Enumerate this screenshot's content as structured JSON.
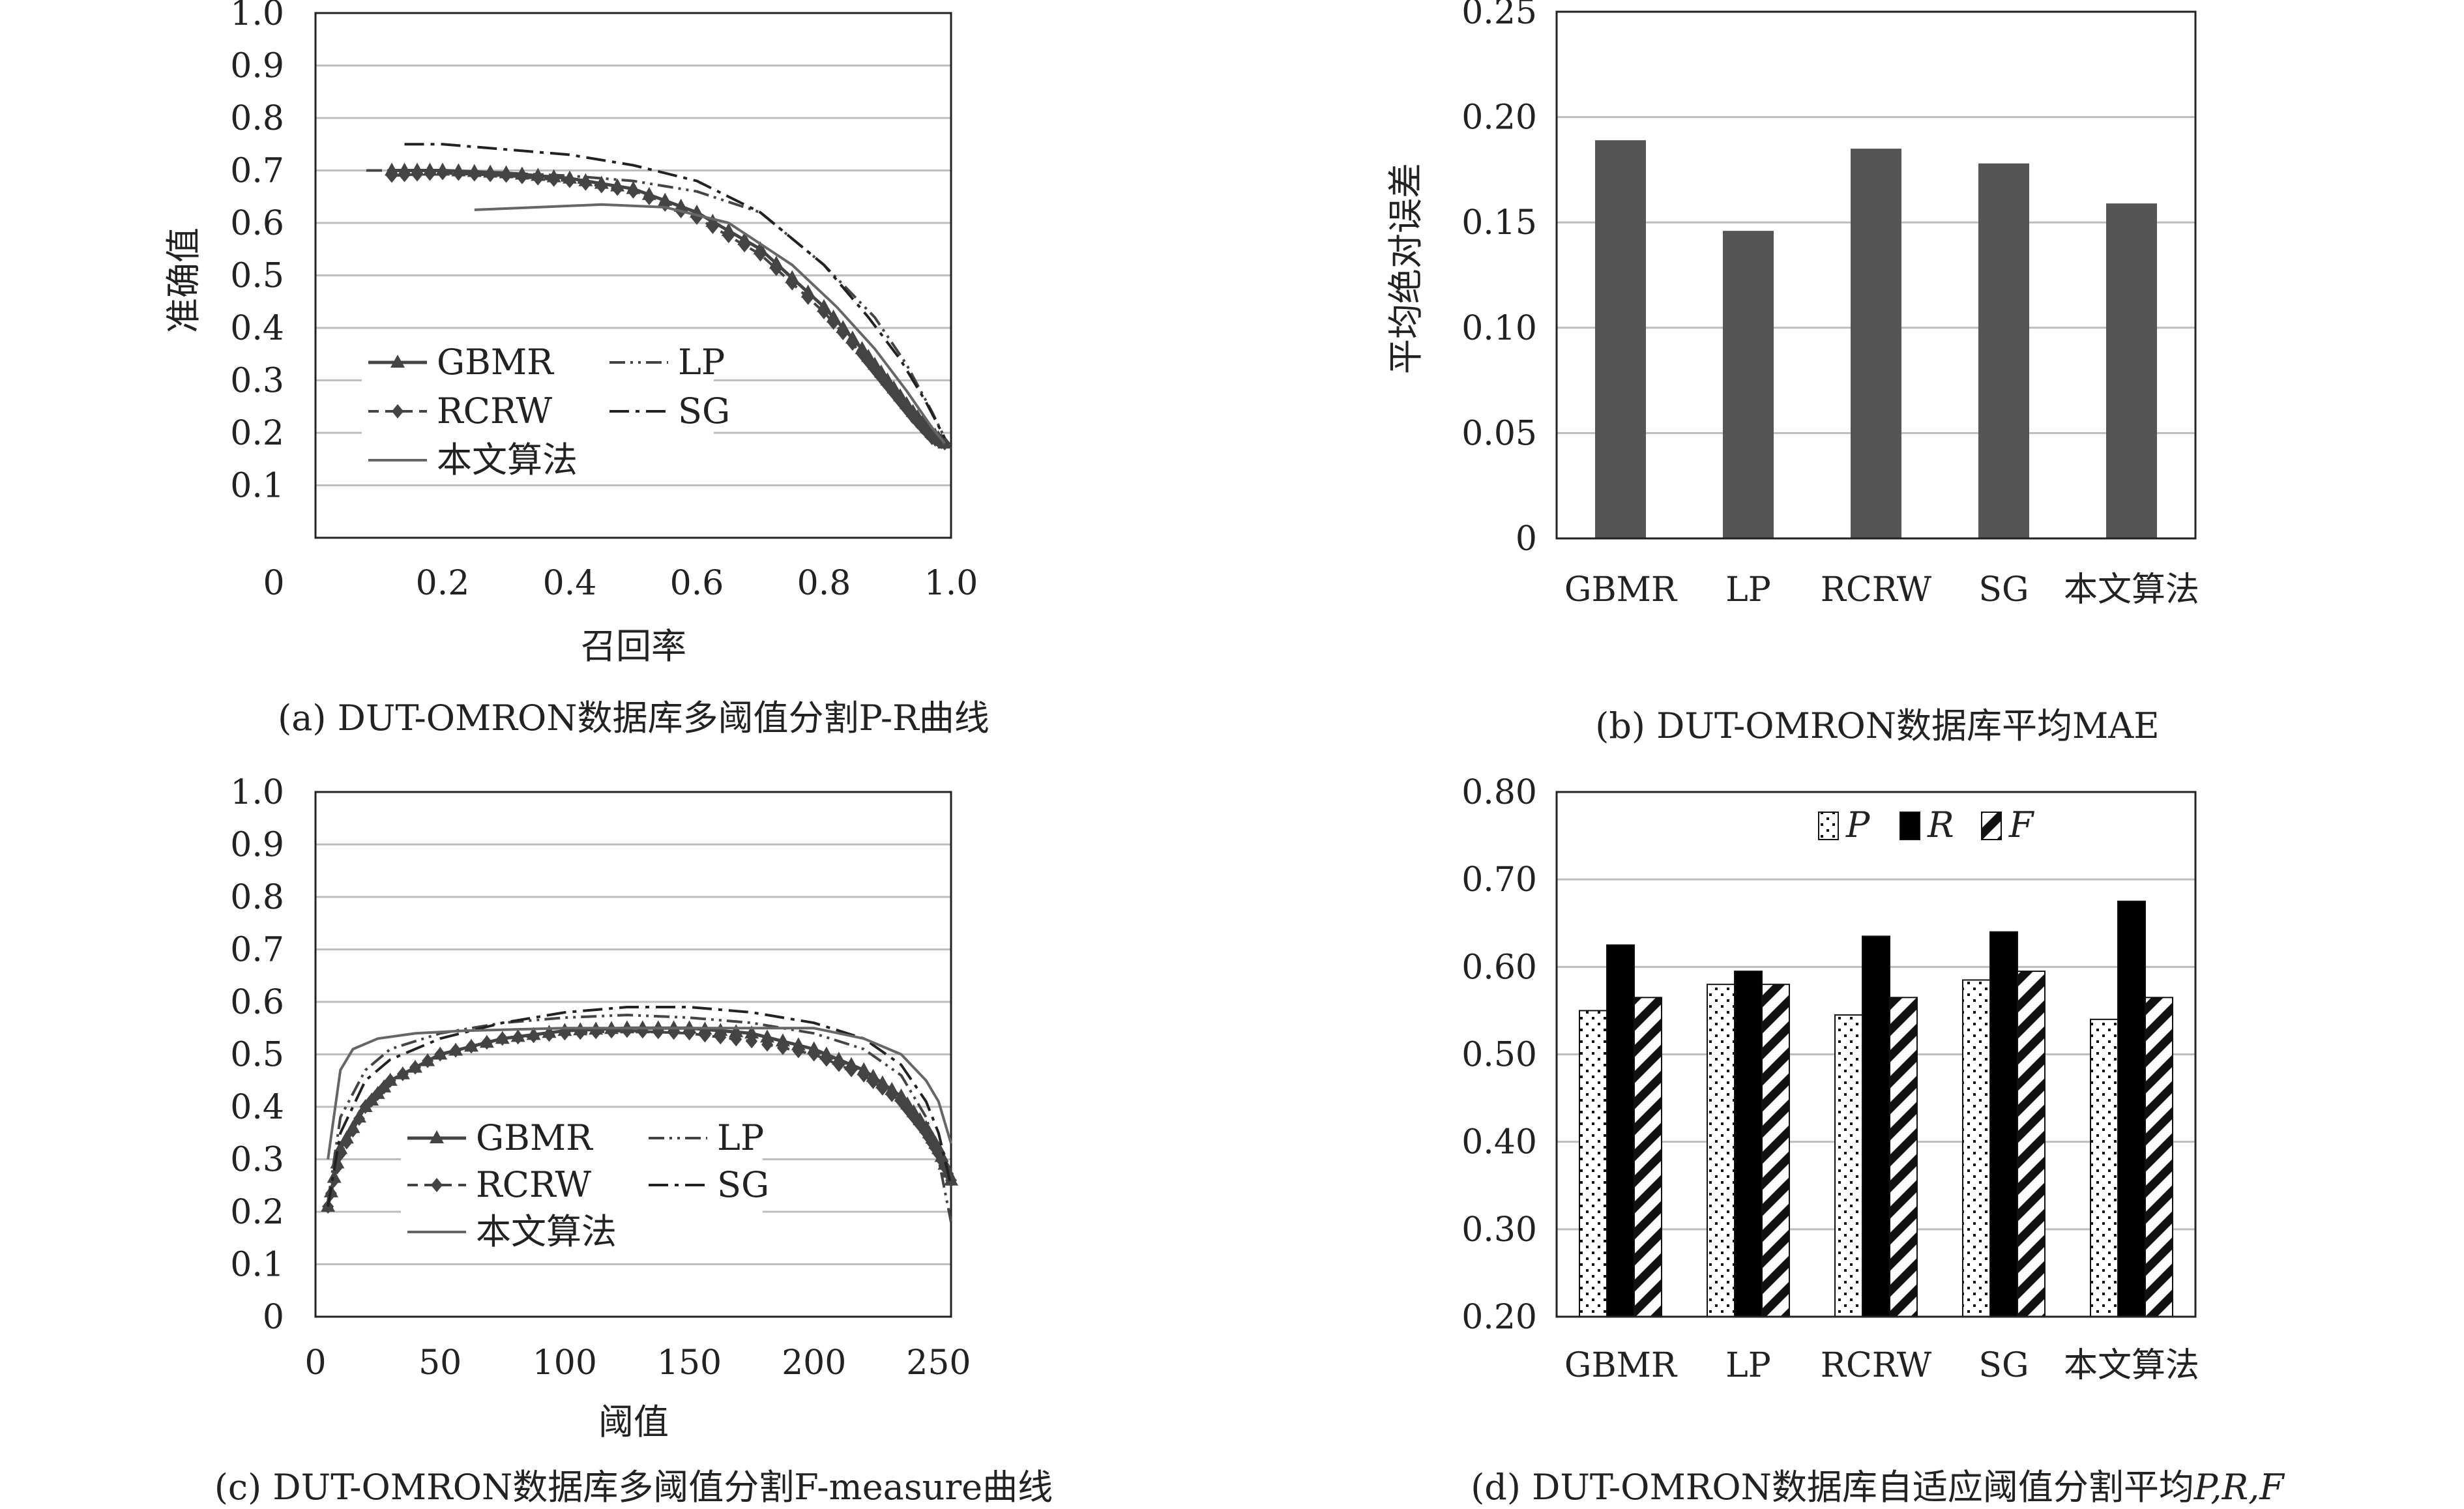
{
  "colors": {
    "grid": "#bdbdbd",
    "axis": "#222222",
    "bar_dark": "#555555",
    "series": "#444444",
    "ours": "#666666"
  },
  "chart_data": [
    {
      "id": "a",
      "type": "line",
      "caption": "(a) DUT-OMRON数据库多阈值分割P-R曲线",
      "xlabel": "召回率",
      "ylabel": "准确值",
      "xlim": [
        0,
        1.0
      ],
      "ylim": [
        0,
        1.0
      ],
      "x_ticks": [
        "0",
        "0.2",
        "0.4",
        "0.6",
        "0.8",
        "1.0"
      ],
      "y_ticks": [
        "0.1",
        "0.2",
        "0.3",
        "0.4",
        "0.5",
        "0.6",
        "0.7",
        "0.8",
        "0.9",
        "1.0"
      ],
      "grid": true,
      "legend_position": "bottom-left",
      "series": [
        {
          "name": "GBMR",
          "style": "solid-triangle",
          "x": [
            0.12,
            0.2,
            0.3,
            0.4,
            0.5,
            0.6,
            0.7,
            0.8,
            0.86,
            0.9,
            0.94,
            0.97,
            0.99
          ],
          "y": [
            0.7,
            0.7,
            0.695,
            0.685,
            0.665,
            0.62,
            0.55,
            0.44,
            0.36,
            0.3,
            0.24,
            0.2,
            0.18
          ]
        },
        {
          "name": "LP",
          "style": "dash-dot-dot",
          "x": [
            0.08,
            0.2,
            0.3,
            0.4,
            0.5,
            0.6,
            0.7,
            0.8,
            0.88,
            0.93,
            0.97,
            0.99
          ],
          "y": [
            0.7,
            0.7,
            0.695,
            0.69,
            0.68,
            0.66,
            0.62,
            0.52,
            0.42,
            0.33,
            0.24,
            0.19
          ]
        },
        {
          "name": "RCRW",
          "style": "dashed-diamond",
          "x": [
            0.12,
            0.2,
            0.3,
            0.4,
            0.5,
            0.6,
            0.7,
            0.8,
            0.86,
            0.9,
            0.94,
            0.97,
            0.99
          ],
          "y": [
            0.69,
            0.695,
            0.69,
            0.68,
            0.66,
            0.61,
            0.54,
            0.43,
            0.35,
            0.29,
            0.23,
            0.19,
            0.18
          ]
        },
        {
          "name": "SG",
          "style": "dash-dot",
          "x": [
            0.14,
            0.2,
            0.3,
            0.4,
            0.5,
            0.6,
            0.7,
            0.8,
            0.87,
            0.92,
            0.96,
            0.99
          ],
          "y": [
            0.75,
            0.75,
            0.74,
            0.73,
            0.71,
            0.68,
            0.62,
            0.52,
            0.42,
            0.34,
            0.26,
            0.19
          ]
        },
        {
          "name": "本文算法",
          "style": "solid-gray",
          "x": [
            0.25,
            0.35,
            0.45,
            0.55,
            0.65,
            0.75,
            0.82,
            0.88,
            0.93,
            0.97,
            0.99
          ],
          "y": [
            0.625,
            0.63,
            0.635,
            0.63,
            0.6,
            0.52,
            0.44,
            0.36,
            0.28,
            0.21,
            0.18
          ]
        }
      ]
    },
    {
      "id": "b",
      "type": "bar",
      "caption": "(b) DUT-OMRON数据库平均MAE",
      "xlabel": "",
      "ylabel": "平均绝对误差",
      "ylim": [
        0,
        0.25
      ],
      "y_ticks": [
        "0",
        "0.05",
        "0.10",
        "0.15",
        "0.20",
        "0.25"
      ],
      "categories": [
        "GBMR",
        "LP",
        "RCRW",
        "SG",
        "本文算法"
      ],
      "values": [
        0.189,
        0.146,
        0.185,
        0.178,
        0.159
      ],
      "grid": true
    },
    {
      "id": "c",
      "type": "line",
      "caption": "(c) DUT-OMRON数据库多阈值分割F-measure曲线",
      "xlabel": "阈值",
      "ylabel": "",
      "xlim": [
        0,
        255
      ],
      "ylim": [
        0,
        1.0
      ],
      "x_ticks": [
        "0",
        "50",
        "100",
        "150",
        "200",
        "250"
      ],
      "y_ticks": [
        "0",
        "0.1",
        "0.2",
        "0.3",
        "0.4",
        "0.5",
        "0.6",
        "0.7",
        "0.8",
        "0.9",
        "1.0"
      ],
      "grid": true,
      "legend_position": "bottom-left",
      "series": [
        {
          "name": "GBMR",
          "style": "solid-triangle",
          "x": [
            5,
            10,
            20,
            30,
            50,
            75,
            100,
            125,
            150,
            175,
            200,
            220,
            235,
            245,
            250,
            255
          ],
          "y": [
            0.21,
            0.32,
            0.4,
            0.45,
            0.5,
            0.53,
            0.545,
            0.55,
            0.55,
            0.54,
            0.51,
            0.47,
            0.42,
            0.36,
            0.32,
            0.26
          ]
        },
        {
          "name": "LP",
          "style": "dash-dot-dot",
          "x": [
            5,
            10,
            20,
            30,
            50,
            75,
            100,
            125,
            150,
            175,
            200,
            220,
            235,
            245,
            250,
            255
          ],
          "y": [
            0.22,
            0.38,
            0.47,
            0.51,
            0.54,
            0.56,
            0.57,
            0.575,
            0.57,
            0.56,
            0.54,
            0.51,
            0.46,
            0.38,
            0.3,
            0.18
          ]
        },
        {
          "name": "RCRW",
          "style": "dashed-diamond",
          "x": [
            5,
            10,
            20,
            30,
            50,
            75,
            100,
            125,
            150,
            175,
            200,
            220,
            235,
            245,
            250,
            255
          ],
          "y": [
            0.21,
            0.31,
            0.4,
            0.45,
            0.5,
            0.53,
            0.54,
            0.545,
            0.54,
            0.525,
            0.5,
            0.46,
            0.41,
            0.35,
            0.31,
            0.26
          ]
        },
        {
          "name": "SG",
          "style": "dash-dot",
          "x": [
            5,
            10,
            20,
            30,
            50,
            75,
            100,
            125,
            150,
            175,
            200,
            220,
            235,
            245,
            250,
            255
          ],
          "y": [
            0.21,
            0.35,
            0.45,
            0.49,
            0.53,
            0.56,
            0.58,
            0.59,
            0.59,
            0.58,
            0.56,
            0.53,
            0.48,
            0.41,
            0.35,
            0.25
          ]
        },
        {
          "name": "本文算法",
          "style": "solid-gray",
          "x": [
            5,
            10,
            15,
            25,
            40,
            60,
            100,
            150,
            200,
            220,
            235,
            245,
            250,
            255
          ],
          "y": [
            0.3,
            0.47,
            0.51,
            0.53,
            0.54,
            0.545,
            0.55,
            0.55,
            0.55,
            0.53,
            0.5,
            0.45,
            0.41,
            0.33
          ]
        }
      ]
    },
    {
      "id": "d",
      "type": "bar",
      "caption": "(d) DUT-OMRON数据库自适应阈值分割平均",
      "caption_italic": "P,R,F",
      "xlabel": "",
      "ylabel": "",
      "ylim": [
        0.2,
        0.8
      ],
      "y_ticks": [
        "0.20",
        "0.30",
        "0.40",
        "0.50",
        "0.60",
        "0.70",
        "0.80"
      ],
      "categories": [
        "GBMR",
        "LP",
        "RCRW",
        "SG",
        "本文算法"
      ],
      "legend_position": "top-right",
      "series": [
        {
          "name": "P",
          "pattern": "dots",
          "values": [
            0.55,
            0.58,
            0.545,
            0.585,
            0.54
          ]
        },
        {
          "name": "R",
          "pattern": "solid-black",
          "values": [
            0.625,
            0.595,
            0.635,
            0.64,
            0.675
          ]
        },
        {
          "name": "F",
          "pattern": "diagonal",
          "values": [
            0.565,
            0.58,
            0.565,
            0.595,
            0.565
          ]
        }
      ],
      "grid": true
    }
  ]
}
